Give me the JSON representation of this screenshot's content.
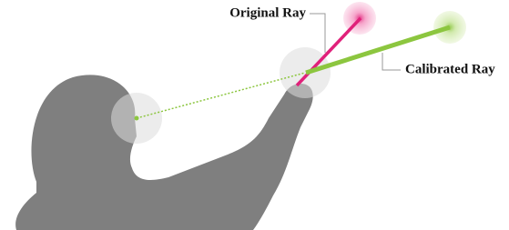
{
  "labels": {
    "original_ray": "Original Ray",
    "calibrated_ray": "Calibrated Ray"
  }
}
